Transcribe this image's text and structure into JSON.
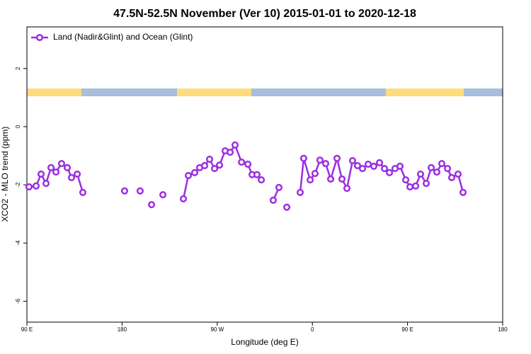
{
  "chart_data": {
    "type": "line",
    "title": "47.5N-52.5N November (Ver 10)   2015-01-01 to 2020-12-18",
    "xlabel": "Longitude (deg E)",
    "ylabel": "XCO2 - MLO trend (ppm)",
    "xlim": [
      90,
      540
    ],
    "ylim": [
      -6.72,
      3.43
    ],
    "xticks": [
      {
        "value": 90,
        "label": "90 E"
      },
      {
        "value": 180,
        "label": "180"
      },
      {
        "value": 270,
        "label": "90 W"
      },
      {
        "value": 360,
        "label": "0"
      },
      {
        "value": 450,
        "label": "90 E"
      },
      {
        "value": 540,
        "label": "180"
      }
    ],
    "yticks": [
      2,
      0,
      -2,
      -4,
      -6
    ],
    "legend": "top-left",
    "series": [
      {
        "name": "Land (Nadir&Glint) and Ocean (Glint)",
        "color": "#9b2fe0",
        "x": [
          92.0,
          98.7,
          103.4,
          108.1,
          112.8,
          117.5,
          122.8,
          128.2,
          132.2,
          137.6,
          142.9,
          160,
          182.4,
          190,
          197.1,
          202,
          207.9,
          213,
          218.6,
          228,
          238.0,
          242.7,
          248.7,
          253.4,
          258.1,
          262.8,
          267.5,
          272.2,
          277.5,
          282.2,
          286.9,
          293.0,
          299.0,
          303.0,
          307.6,
          311.7,
          318,
          323.0,
          328.4,
          332,
          335.8,
          342,
          348.5,
          351.8,
          357.9,
          362.5,
          367.2,
          372.6,
          377.3,
          383.3,
          388.0,
          392.7,
          398.0,
          402.7,
          407.4,
          412.8,
          418.1,
          423.5,
          428.2,
          432.9,
          438.2,
          442.9,
          448.3,
          452.3,
          457.7,
          462.3,
          467.7,
          472.4,
          477.7,
          482.4,
          487.8,
          491.8,
          497.8,
          502.5
        ],
        "values": [
          -2.07,
          -2.04,
          -1.63,
          -1.95,
          -1.41,
          -1.56,
          -1.27,
          -1.41,
          -1.75,
          -1.63,
          -2.26,
          null,
          -2.21,
          null,
          -2.21,
          null,
          -2.68,
          null,
          -2.34,
          null,
          -2.48,
          -1.68,
          -1.58,
          -1.41,
          -1.34,
          -1.12,
          -1.44,
          -1.32,
          -0.83,
          -0.88,
          -0.63,
          -1.22,
          -1.29,
          -1.65,
          -1.65,
          -1.83,
          null,
          -2.53,
          -2.09,
          null,
          -2.77,
          null,
          -2.26,
          -1.09,
          -1.83,
          -1.61,
          -1.15,
          -1.27,
          -1.8,
          -1.09,
          -1.8,
          -2.12,
          -1.17,
          -1.34,
          -1.44,
          -1.29,
          -1.36,
          -1.24,
          -1.44,
          -1.58,
          -1.44,
          -1.36,
          -1.83,
          -2.07,
          -2.04,
          -1.63,
          -1.95,
          -1.41,
          -1.56,
          -1.27,
          -1.44,
          -1.75,
          -1.63,
          -2.26
        ]
      }
    ]
  }
}
